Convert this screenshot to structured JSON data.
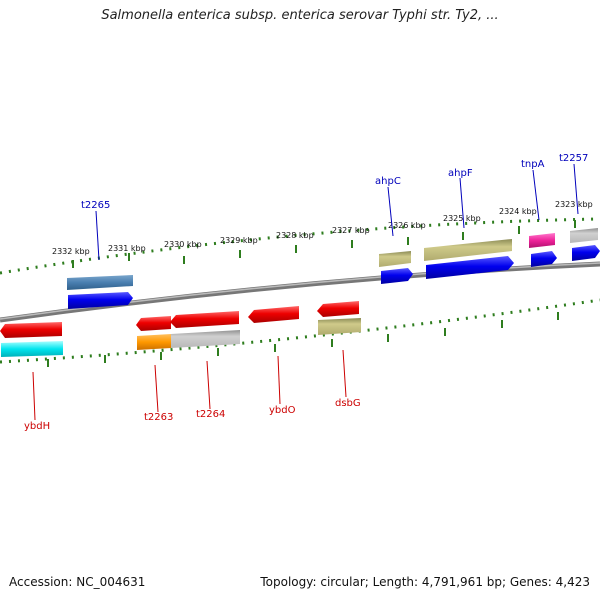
{
  "title": "Salmonella enterica subsp. enterica serovar Typhi str. Ty2, ...",
  "footer": {
    "accession": "Accession: NC_004631",
    "summary": "Topology: circular; Length: 4,791,961 bp; Genes: 4,423"
  },
  "colors": {
    "backbone": "#888888",
    "tick": "#2e7d1e",
    "label_top": "#0000bb",
    "label_bottom": "#cc0000"
  },
  "kbp_ticks": [
    "2332 kbp",
    "2331 kbp",
    "2330 kbp",
    "2329 kbp",
    "2328 kbp",
    "2327 kbp",
    "2326 kbp",
    "2325 kbp",
    "2324 kbp",
    "2323 kbp"
  ],
  "gene_labels_top": [
    "t2265",
    "ahpC",
    "ahpF",
    "tnpA",
    "t2257"
  ],
  "gene_labels_bottom": [
    "ybdH",
    "t2263",
    "t2264",
    "ybdO",
    "dsbG"
  ]
}
